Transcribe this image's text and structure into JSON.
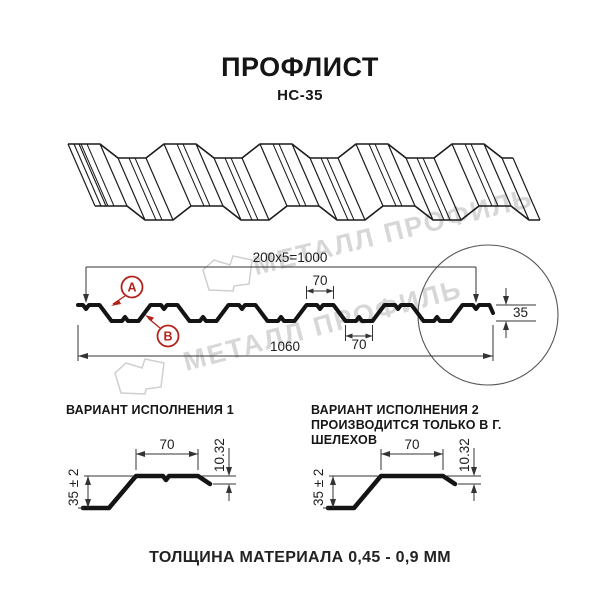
{
  "header": {
    "title": "ПРОФЛИСТ",
    "subtitle": "НС-35"
  },
  "watermark": {
    "text": "МЕТАЛЛ ПРОФИЛЬ",
    "color": "#d7d7d7"
  },
  "section": {
    "dims": {
      "pitch_total": "200x5=1000",
      "top_flange": "70",
      "bottom_flange": "70",
      "overall_width": "1060",
      "height": "35"
    },
    "markers": {
      "a": "A",
      "b": "B"
    }
  },
  "variants": [
    {
      "title": "ВАРИАНТ ИСПОЛНЕНИЯ 1",
      "note": "",
      "dims": {
        "flange": "70",
        "lip": "10.32",
        "height": "35 ± 2"
      }
    },
    {
      "title": "ВАРИАНТ ИСПОЛНЕНИЯ 2",
      "note": "ПРОИЗВОДИТСЯ ТОЛЬКО В Г. ШЕЛЕХОВ",
      "dims": {
        "flange": "70",
        "lip": "10.32",
        "height": "35 ± 2"
      }
    }
  ],
  "footer": {
    "note": "ТОЛЩИНА МАТЕРИАЛА 0,45 - 0,9 ММ"
  },
  "colors": {
    "line": "#1a1a1a",
    "accent_red": "#b3231b",
    "watermark": "#d7d7d7"
  }
}
